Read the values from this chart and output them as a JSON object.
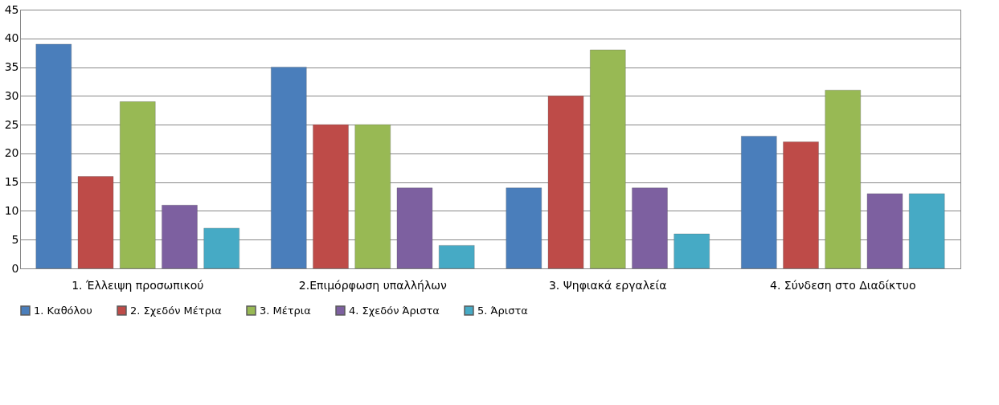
{
  "chart_data": {
    "type": "bar",
    "categories": [
      "1. Έλλειψη προσωπικού",
      "2.Επιμόρφωση υπαλλήλων",
      "3. Ψηφιακά εργαλεία",
      "4.  Σύνδεση στο Διαδίκτυο"
    ],
    "series": [
      {
        "name": "1. Καθόλου",
        "color": "#4a7ebb",
        "values": [
          39,
          35,
          14,
          23
        ]
      },
      {
        "name": "2. Σχεδόν Μέτρια",
        "color": "#be4b48",
        "values": [
          16,
          25,
          30,
          22
        ]
      },
      {
        "name": "3. Μέτρια",
        "color": "#98b954",
        "values": [
          29,
          25,
          38,
          31
        ]
      },
      {
        "name": "4. Σχεδόν Άριστα",
        "color": "#7d60a0",
        "values": [
          11,
          14,
          14,
          13
        ]
      },
      {
        "name": "5. Άριστα",
        "color": "#46aac5",
        "values": [
          7,
          4,
          6,
          13
        ]
      }
    ],
    "ylim": [
      0,
      45
    ],
    "yticks": [
      0,
      5,
      10,
      15,
      20,
      25,
      30,
      35,
      40,
      45
    ],
    "grid": "y",
    "legend": "bottom"
  }
}
